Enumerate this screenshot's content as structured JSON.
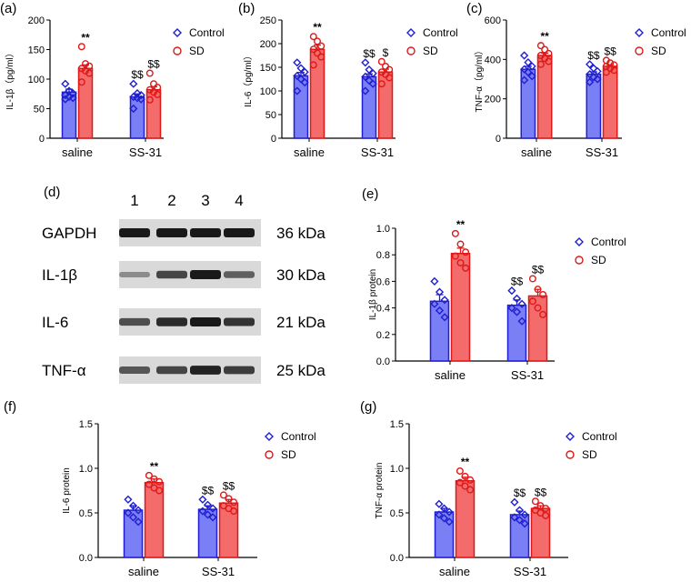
{
  "colors": {
    "control_fill": "#7b7ff5",
    "control_edge": "#1f1fd1",
    "sd_fill": "#f36b6b",
    "sd_edge": "#e01818",
    "axis": "#000000"
  },
  "chart_data": [
    {
      "id": "a",
      "label": "(a)",
      "type": "bar",
      "title": "",
      "xlabel": "",
      "ylabel": "IL-1β（pg/ml）",
      "categories": [
        "saline",
        "SS-31"
      ],
      "ylim": [
        0,
        200
      ],
      "yticks": [
        0,
        50,
        100,
        150,
        200
      ],
      "legend_position": "top-right",
      "series": [
        {
          "name": "Control",
          "values": [
            78,
            70
          ],
          "sem": [
            5,
            5
          ],
          "points": [
            [
              92,
              80,
              76,
              73,
              70,
              68,
              66
            ],
            [
              92,
              76,
              73,
              70,
              68,
              66,
              50
            ]
          ]
        },
        {
          "name": "SD",
          "values": [
            118,
            82
          ],
          "sem": [
            6,
            5
          ],
          "points": [
            [
              155,
              126,
              122,
              118,
              114,
              110,
              95
            ],
            [
              110,
              92,
              86,
              82,
              78,
              74,
              65
            ]
          ]
        }
      ],
      "annotations": [
        {
          "series": 1,
          "category": 0,
          "text": "**"
        },
        {
          "series": 0,
          "category": 1,
          "text": "$$"
        },
        {
          "series": 1,
          "category": 1,
          "text": "$$"
        }
      ]
    },
    {
      "id": "b",
      "label": "(b)",
      "type": "bar",
      "title": "",
      "xlabel": "",
      "ylabel": "IL-6（pg/ml）",
      "categories": [
        "saline",
        "SS-31"
      ],
      "ylim": [
        0,
        250
      ],
      "yticks": [
        0,
        50,
        100,
        150,
        200,
        250
      ],
      "legend_position": "top-right",
      "series": [
        {
          "name": "Control",
          "values": [
            132,
            130
          ],
          "sem": [
            7,
            6
          ],
          "points": [
            [
              160,
              148,
              140,
              132,
              125,
              118,
              100
            ],
            [
              160,
              145,
              137,
              130,
              122,
              115,
              100
            ]
          ]
        },
        {
          "name": "SD",
          "values": [
            188,
            140
          ],
          "sem": [
            9,
            6
          ],
          "points": [
            [
              215,
              205,
              195,
              188,
              180,
              172,
              155
            ],
            [
              162,
              152,
              145,
              140,
              135,
              128,
              115
            ]
          ]
        }
      ],
      "annotations": [
        {
          "series": 1,
          "category": 0,
          "text": "**"
        },
        {
          "series": 0,
          "category": 1,
          "text": "$$"
        },
        {
          "series": 1,
          "category": 1,
          "text": "$"
        }
      ]
    },
    {
      "id": "c",
      "label": "(c)",
      "type": "bar",
      "title": "",
      "xlabel": "",
      "ylabel": "TNF-α（pg/ml）",
      "categories": [
        "saline",
        "SS-31"
      ],
      "ylim": [
        0,
        600
      ],
      "yticks": [
        0,
        200,
        400,
        600
      ],
      "legend_position": "top-right",
      "series": [
        {
          "name": "Control",
          "values": [
            350,
            325
          ],
          "sem": [
            15,
            12
          ],
          "points": [
            [
              420,
              385,
              365,
              350,
              335,
              315,
              295
            ],
            [
              375,
              355,
              340,
              325,
              310,
              300,
              285
            ]
          ]
        },
        {
          "name": "SD",
          "values": [
            420,
            365
          ],
          "sem": [
            12,
            8
          ],
          "points": [
            [
              470,
              450,
              430,
              420,
              405,
              390,
              375
            ],
            [
              395,
              382,
              372,
              365,
              355,
              345,
              335
            ]
          ]
        }
      ],
      "annotations": [
        {
          "series": 1,
          "category": 0,
          "text": "**"
        },
        {
          "series": 0,
          "category": 1,
          "text": "$$"
        },
        {
          "series": 1,
          "category": 1,
          "text": "$$"
        }
      ]
    },
    {
      "id": "e",
      "label": "(e)",
      "type": "bar",
      "title": "",
      "xlabel": "",
      "ylabel": "IL-1β protein",
      "categories": [
        "saline",
        "SS-31"
      ],
      "ylim": [
        0,
        1.0
      ],
      "yticks": [
        0.0,
        0.2,
        0.4,
        0.6,
        0.8,
        1.0
      ],
      "legend_position": "top-right",
      "series": [
        {
          "name": "Control",
          "values": [
            0.45,
            0.42
          ],
          "sem": [
            0.05,
            0.04
          ],
          "points": [
            [
              0.6,
              0.52,
              0.46,
              0.43,
              0.38,
              0.33
            ],
            [
              0.53,
              0.47,
              0.43,
              0.4,
              0.37,
              0.3
            ]
          ]
        },
        {
          "name": "SD",
          "values": [
            0.81,
            0.49
          ],
          "sem": [
            0.04,
            0.05
          ],
          "points": [
            [
              0.96,
              0.88,
              0.82,
              0.79,
              0.74,
              0.7
            ],
            [
              0.62,
              0.54,
              0.5,
              0.45,
              0.4,
              0.35
            ]
          ]
        }
      ],
      "annotations": [
        {
          "series": 1,
          "category": 0,
          "text": "**"
        },
        {
          "series": 0,
          "category": 1,
          "text": "$$"
        },
        {
          "series": 1,
          "category": 1,
          "text": "$$"
        }
      ]
    },
    {
      "id": "f",
      "label": "(f)",
      "type": "bar",
      "title": "",
      "xlabel": "",
      "ylabel": "IL-6 protein",
      "categories": [
        "saline",
        "SS-31"
      ],
      "ylim": [
        0,
        1.5
      ],
      "yticks": [
        0.0,
        0.5,
        1.0,
        1.5
      ],
      "legend_position": "top-right",
      "series": [
        {
          "name": "Control",
          "values": [
            0.53,
            0.54
          ],
          "sem": [
            0.05,
            0.04
          ],
          "points": [
            [
              0.65,
              0.58,
              0.53,
              0.5,
              0.45,
              0.4
            ],
            [
              0.65,
              0.59,
              0.55,
              0.52,
              0.48,
              0.45
            ]
          ]
        },
        {
          "name": "SD",
          "values": [
            0.84,
            0.61
          ],
          "sem": [
            0.04,
            0.04
          ],
          "points": [
            [
              0.92,
              0.88,
              0.85,
              0.82,
              0.78,
              0.75
            ],
            [
              0.7,
              0.66,
              0.62,
              0.58,
              0.55,
              0.52
            ]
          ]
        }
      ],
      "annotations": [
        {
          "series": 1,
          "category": 0,
          "text": "**"
        },
        {
          "series": 0,
          "category": 1,
          "text": "$$"
        },
        {
          "series": 1,
          "category": 1,
          "text": "$$"
        }
      ]
    },
    {
      "id": "g",
      "label": "(g)",
      "type": "bar",
      "title": "",
      "xlabel": "",
      "ylabel": "TNF-α protein",
      "categories": [
        "saline",
        "SS-31"
      ],
      "ylim": [
        0,
        1.5
      ],
      "yticks": [
        0.0,
        0.5,
        1.0,
        1.5
      ],
      "legend_position": "top-right",
      "series": [
        {
          "name": "Control",
          "values": [
            0.51,
            0.48
          ],
          "sem": [
            0.04,
            0.04
          ],
          "points": [
            [
              0.6,
              0.55,
              0.51,
              0.48,
              0.44,
              0.4
            ],
            [
              0.62,
              0.53,
              0.48,
              0.45,
              0.42,
              0.38
            ]
          ]
        },
        {
          "name": "SD",
          "values": [
            0.86,
            0.55
          ],
          "sem": [
            0.04,
            0.03
          ],
          "points": [
            [
              0.97,
              0.91,
              0.87,
              0.84,
              0.8,
              0.76
            ],
            [
              0.63,
              0.58,
              0.55,
              0.53,
              0.5,
              0.47
            ]
          ]
        }
      ],
      "annotations": [
        {
          "series": 1,
          "category": 0,
          "text": "**"
        },
        {
          "series": 0,
          "category": 1,
          "text": "$$"
        },
        {
          "series": 1,
          "category": 1,
          "text": "$$"
        }
      ]
    }
  ],
  "western_blot": {
    "label": "(d)",
    "lanes": [
      "1",
      "2",
      "3",
      "4"
    ],
    "rows": [
      {
        "protein": "GAPDH",
        "size": "36 kDa",
        "intensity": [
          1.0,
          1.0,
          1.0,
          1.0
        ]
      },
      {
        "protein": "IL-1β",
        "size": "30 kDa",
        "intensity": [
          0.35,
          0.75,
          1.0,
          0.6
        ]
      },
      {
        "protein": "IL-6",
        "size": "21 kDa",
        "intensity": [
          0.7,
          0.9,
          1.0,
          0.85
        ]
      },
      {
        "protein": "TNF-α",
        "size": "25 kDa",
        "intensity": [
          0.65,
          0.75,
          0.95,
          0.8
        ]
      }
    ]
  }
}
